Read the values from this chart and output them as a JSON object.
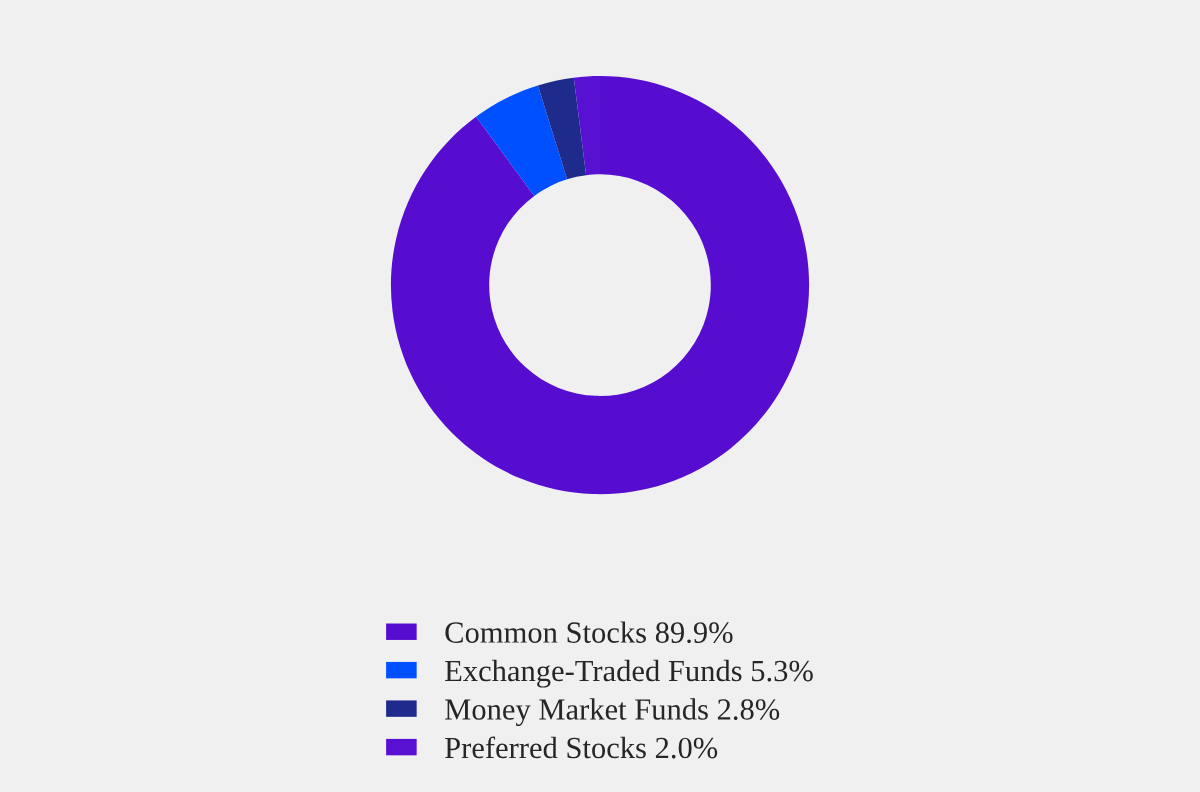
{
  "chart_data": {
    "type": "donut",
    "categories": [
      "Common Stocks 89.9%",
      "Exchange-Traded Funds 5.3%",
      "Money Market Funds 2.8%",
      "Preferred Stocks 2.0%"
    ],
    "values": [
      89.9,
      5.3,
      2.8,
      2.0
    ],
    "colors": [
      "#560dd0",
      "#0050ff",
      "#1e2a8c",
      "#5810d2"
    ],
    "legend": "bottom"
  }
}
